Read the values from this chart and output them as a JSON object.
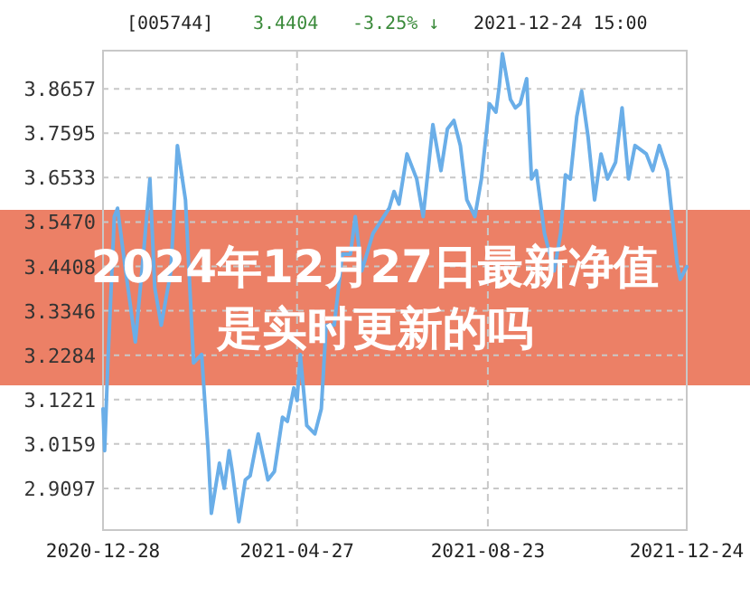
{
  "chart_data": {
    "type": "line",
    "title": "2024年12月27日最新净值是实时更新的吗",
    "annotations": [
      "[005744]",
      "3.4404",
      "-3.25% ↓",
      "2021-12-24 15:00"
    ],
    "x": [
      "2020-12-28",
      "2020-12-29",
      "2020-12-31",
      "2021-01-04",
      "2021-01-06",
      "2021-01-11",
      "2021-01-17",
      "2021-01-22",
      "2021-01-26",
      "2021-01-29",
      "2021-02-02",
      "2021-02-08",
      "2021-02-12",
      "2021-02-17",
      "2021-02-22",
      "2021-02-27",
      "2021-03-03",
      "2021-03-05",
      "2021-03-10",
      "2021-03-13",
      "2021-03-16",
      "2021-03-18",
      "2021-03-22",
      "2021-03-26",
      "2021-03-29",
      "2021-04-03",
      "2021-04-09",
      "2021-04-13",
      "2021-04-18",
      "2021-04-21",
      "2021-04-25",
      "2021-04-27",
      "2021-04-29",
      "2021-05-03",
      "2021-05-08",
      "2021-05-12",
      "2021-05-15",
      "2021-05-20",
      "2021-05-25",
      "2021-05-30",
      "2021-06-02",
      "2021-06-06",
      "2021-06-13",
      "2021-06-23",
      "2021-06-26",
      "2021-06-29",
      "2021-07-04",
      "2021-07-10",
      "2021-07-14",
      "2021-07-20",
      "2021-07-25",
      "2021-07-29",
      "2021-08-02",
      "2021-08-06",
      "2021-08-10",
      "2021-08-15",
      "2021-08-19",
      "2021-08-24",
      "2021-08-28",
      "2021-08-30",
      "2021-09-01",
      "2021-09-06",
      "2021-09-09",
      "2021-09-12",
      "2021-09-16",
      "2021-09-19",
      "2021-09-22",
      "2021-09-27",
      "2021-10-03",
      "2021-10-07",
      "2021-10-10",
      "2021-10-13",
      "2021-10-17",
      "2021-10-20",
      "2021-10-24",
      "2021-10-28",
      "2021-11-01",
      "2021-11-05",
      "2021-11-10",
      "2021-11-14",
      "2021-11-18",
      "2021-11-22",
      "2021-11-29",
      "2021-12-03",
      "2021-12-07",
      "2021-12-12",
      "2021-12-15",
      "2021-12-18",
      "2021-12-20",
      "2021-12-24"
    ],
    "series": [
      {
        "color": "#6aaee8",
        "values": [
          3.1,
          3.0,
          3.21,
          3.56,
          3.58,
          3.43,
          3.26,
          3.47,
          3.65,
          3.39,
          3.3,
          3.43,
          3.73,
          3.6,
          3.21,
          3.23,
          3.0,
          2.85,
          2.97,
          2.91,
          3.0,
          2.95,
          2.83,
          2.93,
          2.94,
          3.04,
          2.93,
          2.95,
          3.08,
          3.07,
          3.15,
          3.12,
          3.23,
          3.06,
          3.04,
          3.1,
          3.3,
          3.3,
          3.47,
          3.47,
          3.56,
          3.43,
          3.52,
          3.58,
          3.62,
          3.59,
          3.71,
          3.65,
          3.56,
          3.78,
          3.67,
          3.77,
          3.79,
          3.73,
          3.6,
          3.56,
          3.65,
          3.83,
          3.81,
          3.87,
          3.95,
          3.84,
          3.82,
          3.83,
          3.89,
          3.65,
          3.67,
          3.52,
          3.43,
          3.52,
          3.66,
          3.65,
          3.8,
          3.86,
          3.75,
          3.6,
          3.71,
          3.65,
          3.69,
          3.82,
          3.65,
          3.73,
          3.71,
          3.67,
          3.73,
          3.67,
          3.56,
          3.45,
          3.41,
          3.44
        ]
      }
    ],
    "xlim": [
      "2020-12-28",
      "2021-12-24"
    ],
    "xticks": [
      "2020-12-28",
      "2021-04-27",
      "2021-08-23",
      "2021-12-24"
    ],
    "ylim": [
      2.81,
      3.957
    ],
    "yticks": [
      3.8657,
      3.7595,
      3.6533,
      {
        "value": 3.547,
        "label": "3.5470"
      },
      3.4408,
      3.3346,
      3.2284,
      3.1221,
      3.0159,
      2.9097
    ],
    "grid": true
  }
}
